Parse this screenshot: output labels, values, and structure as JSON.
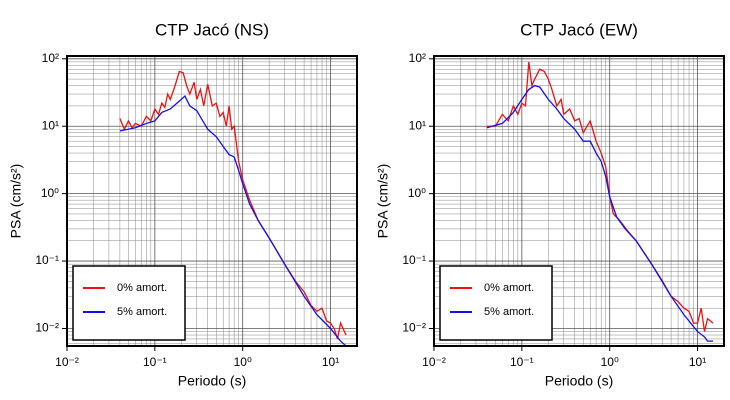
{
  "chart_data": [
    {
      "type": "line",
      "title": "CTP Jacó (NS)",
      "x_label": "Periodo (s)",
      "y_label": "PSA (cm/s²)",
      "log_x": true,
      "log_y": true,
      "grid": true,
      "legend": "lower left",
      "xlim": [
        0.01,
        20
      ],
      "ylim": [
        0.0055,
        110
      ],
      "xticks": [
        {
          "value": 0.01,
          "label": "10⁻²"
        },
        {
          "value": 0.1,
          "label": "10⁻¹"
        },
        {
          "value": 1,
          "label": "10⁰"
        },
        {
          "value": 10,
          "label": "10¹"
        }
      ],
      "yticks": [
        {
          "value": 0.01,
          "label": "10⁻²"
        },
        {
          "value": 0.1,
          "label": "10⁻¹"
        },
        {
          "value": 1,
          "label": "10⁰"
        },
        {
          "value": 10,
          "label": "10¹"
        },
        {
          "value": 100,
          "label": "10²"
        }
      ],
      "xminorticks": [
        0.02,
        0.03,
        0.04,
        0.05,
        0.06,
        0.07,
        0.08,
        0.09,
        0.2,
        0.3,
        0.4,
        0.5,
        0.6,
        0.7,
        0.8,
        0.9,
        2,
        3,
        4,
        5,
        6,
        7,
        8,
        9
      ],
      "yminorticks": [
        0.006,
        0.007,
        0.008,
        0.009,
        0.02,
        0.03,
        0.04,
        0.05,
        0.06,
        0.07,
        0.08,
        0.09,
        0.2,
        0.3,
        0.4,
        0.5,
        0.6,
        0.7,
        0.8,
        0.9,
        2,
        3,
        4,
        5,
        6,
        7,
        8,
        9,
        20,
        30,
        40,
        50,
        60,
        70,
        80,
        90
      ],
      "series": [
        {
          "name": "0% amort.",
          "color": "#ee1111",
          "x": [
            0.04,
            0.045,
            0.05,
            0.055,
            0.06,
            0.07,
            0.08,
            0.09,
            0.1,
            0.11,
            0.12,
            0.13,
            0.14,
            0.15,
            0.17,
            0.19,
            0.21,
            0.23,
            0.25,
            0.28,
            0.3,
            0.33,
            0.36,
            0.4,
            0.45,
            0.5,
            0.55,
            0.6,
            0.65,
            0.7,
            0.75,
            0.8,
            0.9,
            1.0,
            1.2,
            1.5,
            2,
            3,
            4,
            5,
            6,
            7,
            8,
            9,
            10,
            11,
            12,
            13,
            15
          ],
          "values": [
            13,
            9,
            12,
            9.5,
            11,
            10,
            14,
            12,
            18,
            15,
            22,
            19,
            30,
            25,
            40,
            65,
            62,
            40,
            30,
            45,
            25,
            35,
            20,
            42,
            20,
            22,
            14,
            16,
            10,
            20,
            9,
            10,
            3,
            1.6,
            0.8,
            0.4,
            0.22,
            0.09,
            0.05,
            0.035,
            0.022,
            0.018,
            0.02,
            0.013,
            0.012,
            0.01,
            0.007,
            0.012,
            0.008
          ]
        },
        {
          "name": "5% amort.",
          "color": "#1111ee",
          "x": [
            0.04,
            0.06,
            0.08,
            0.1,
            0.12,
            0.15,
            0.2,
            0.22,
            0.25,
            0.3,
            0.4,
            0.5,
            0.6,
            0.7,
            0.8,
            0.9,
            1.0,
            1.2,
            1.5,
            2,
            3,
            5,
            7,
            10,
            13,
            15
          ],
          "values": [
            8.5,
            9.5,
            11,
            12,
            16,
            18,
            25,
            28,
            20,
            17,
            9,
            7,
            5,
            3.8,
            3.5,
            2.2,
            1.4,
            0.7,
            0.4,
            0.22,
            0.09,
            0.03,
            0.016,
            0.01,
            0.0065,
            0.0055
          ]
        }
      ]
    },
    {
      "type": "line",
      "title": "CTP Jacó (EW)",
      "x_label": "Periodo (s)",
      "y_label": "PSA (cm/s²)",
      "log_x": true,
      "log_y": true,
      "grid": true,
      "legend": "lower left",
      "xlim": [
        0.01,
        20
      ],
      "ylim": [
        0.0055,
        110
      ],
      "xticks": [
        {
          "value": 0.01,
          "label": "10⁻²"
        },
        {
          "value": 0.1,
          "label": "10⁻¹"
        },
        {
          "value": 1,
          "label": "10⁰"
        },
        {
          "value": 10,
          "label": "10¹"
        }
      ],
      "yticks": [
        {
          "value": 0.01,
          "label": "10⁻²"
        },
        {
          "value": 0.1,
          "label": "10⁻¹"
        },
        {
          "value": 1,
          "label": "10⁰"
        },
        {
          "value": 10,
          "label": "10¹"
        },
        {
          "value": 100,
          "label": "10²"
        }
      ],
      "xminorticks": [
        0.02,
        0.03,
        0.04,
        0.05,
        0.06,
        0.07,
        0.08,
        0.09,
        0.2,
        0.3,
        0.4,
        0.5,
        0.6,
        0.7,
        0.8,
        0.9,
        2,
        3,
        4,
        5,
        6,
        7,
        8,
        9
      ],
      "yminorticks": [
        0.006,
        0.007,
        0.008,
        0.009,
        0.02,
        0.03,
        0.04,
        0.05,
        0.06,
        0.07,
        0.08,
        0.09,
        0.2,
        0.3,
        0.4,
        0.5,
        0.6,
        0.7,
        0.8,
        0.9,
        2,
        3,
        4,
        5,
        6,
        7,
        8,
        9,
        20,
        30,
        40,
        50,
        60,
        70,
        80,
        90
      ],
      "series": [
        {
          "name": "0% amort.",
          "color": "#ee1111",
          "x": [
            0.04,
            0.05,
            0.06,
            0.07,
            0.08,
            0.09,
            0.1,
            0.11,
            0.12,
            0.13,
            0.14,
            0.16,
            0.18,
            0.2,
            0.22,
            0.25,
            0.28,
            0.3,
            0.35,
            0.4,
            0.45,
            0.5,
            0.6,
            0.7,
            0.8,
            0.9,
            1.0,
            1.1,
            1.3,
            1.6,
            2,
            3,
            4,
            5,
            6,
            7,
            8,
            9,
            10,
            11,
            12,
            13,
            15
          ],
          "values": [
            10,
            10,
            15,
            12,
            20,
            15,
            22,
            20,
            90,
            40,
            50,
            70,
            65,
            50,
            35,
            20,
            25,
            15,
            18,
            12,
            13,
            8,
            12,
            6,
            4,
            2.5,
            0.9,
            0.5,
            0.4,
            0.28,
            0.2,
            0.09,
            0.05,
            0.03,
            0.025,
            0.02,
            0.018,
            0.012,
            0.012,
            0.02,
            0.009,
            0.014,
            0.012
          ]
        },
        {
          "name": "5% amort.",
          "color": "#1111ee",
          "x": [
            0.04,
            0.06,
            0.08,
            0.1,
            0.12,
            0.14,
            0.16,
            0.2,
            0.25,
            0.3,
            0.4,
            0.5,
            0.6,
            0.7,
            0.8,
            0.9,
            1.0,
            1.2,
            1.5,
            2,
            3,
            5,
            7,
            10,
            12,
            13,
            15
          ],
          "values": [
            9.5,
            11,
            16,
            25,
            35,
            40,
            38,
            25,
            18,
            13,
            9,
            6,
            6,
            4,
            3,
            1.8,
            0.9,
            0.45,
            0.3,
            0.2,
            0.09,
            0.03,
            0.016,
            0.009,
            0.0075,
            0.0065,
            0.0065
          ]
        }
      ]
    }
  ]
}
